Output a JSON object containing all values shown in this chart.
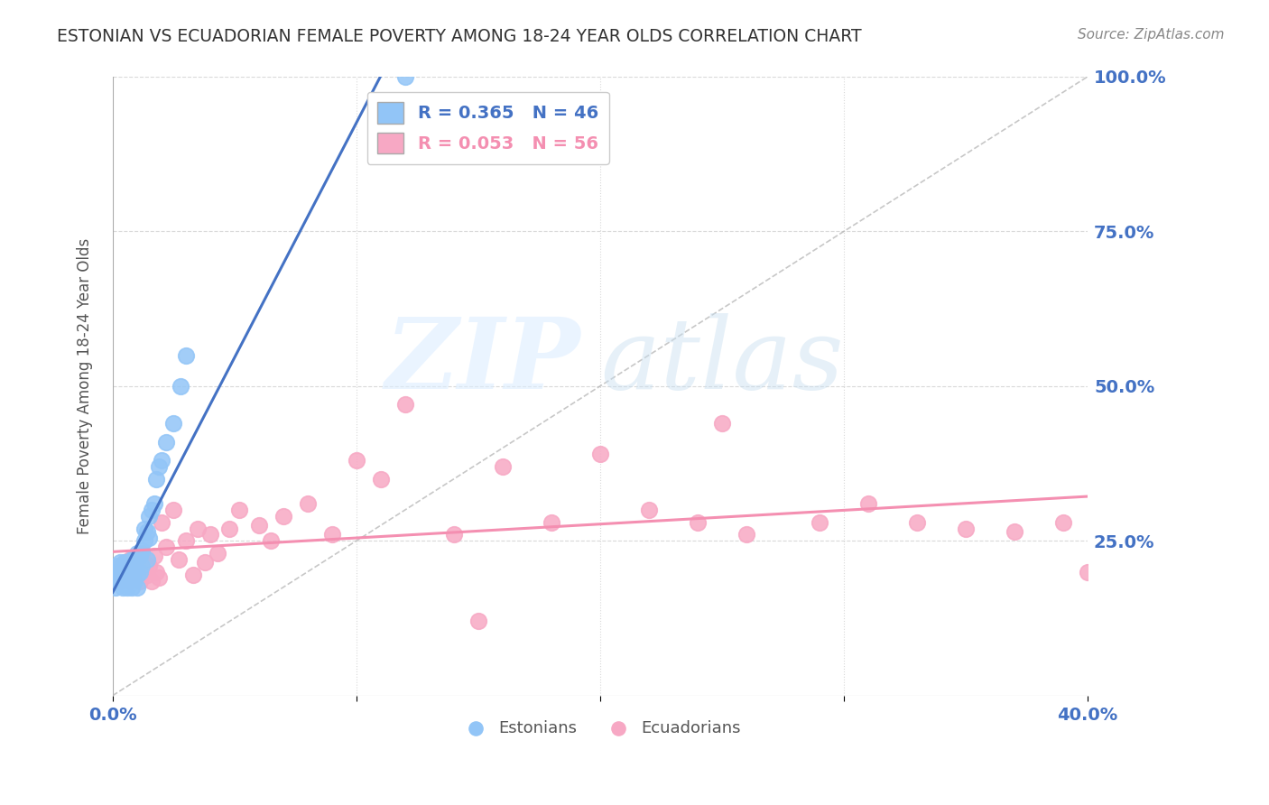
{
  "title": "ESTONIAN VS ECUADORIAN FEMALE POVERTY AMONG 18-24 YEAR OLDS CORRELATION CHART",
  "source": "Source: ZipAtlas.com",
  "ylabel": "Female Poverty Among 18-24 Year Olds",
  "xlim": [
    0.0,
    0.4
  ],
  "ylim": [
    0.0,
    1.0
  ],
  "xticks": [
    0.0,
    0.1,
    0.2,
    0.3,
    0.4
  ],
  "xticklabels": [
    "0.0%",
    "",
    "",
    "",
    "40.0%"
  ],
  "yticks": [
    0.0,
    0.25,
    0.5,
    0.75,
    1.0
  ],
  "yticklabels": [
    "",
    "25.0%",
    "50.0%",
    "75.0%",
    "100.0%"
  ],
  "estonian_R": 0.365,
  "estonian_N": 46,
  "ecuadorian_R": 0.053,
  "ecuadorian_N": 56,
  "estonian_color": "#92c5f7",
  "ecuadorian_color": "#f7a8c4",
  "estonian_line_color": "#4472c4",
  "ecuadorian_line_color": "#f48fb1",
  "refline_color": "#b0b0b0",
  "grid_color": "#d0d0d0",
  "axis_color": "#4472c4",
  "title_color": "#333333",
  "estonian_x": [
    0.0,
    0.001,
    0.001,
    0.002,
    0.002,
    0.003,
    0.003,
    0.004,
    0.004,
    0.004,
    0.005,
    0.005,
    0.005,
    0.006,
    0.006,
    0.006,
    0.007,
    0.007,
    0.008,
    0.008,
    0.008,
    0.009,
    0.009,
    0.01,
    0.01,
    0.01,
    0.011,
    0.011,
    0.012,
    0.012,
    0.013,
    0.013,
    0.014,
    0.014,
    0.015,
    0.015,
    0.016,
    0.017,
    0.018,
    0.019,
    0.02,
    0.022,
    0.025,
    0.028,
    0.03,
    0.12
  ],
  "estonian_y": [
    0.185,
    0.175,
    0.195,
    0.2,
    0.21,
    0.185,
    0.215,
    0.175,
    0.19,
    0.21,
    0.18,
    0.195,
    0.215,
    0.175,
    0.195,
    0.215,
    0.185,
    0.21,
    0.175,
    0.195,
    0.22,
    0.185,
    0.215,
    0.175,
    0.195,
    0.23,
    0.2,
    0.225,
    0.21,
    0.235,
    0.25,
    0.27,
    0.22,
    0.265,
    0.255,
    0.29,
    0.3,
    0.31,
    0.35,
    0.37,
    0.38,
    0.41,
    0.44,
    0.5,
    0.55,
    1.0
  ],
  "ecuadorian_x": [
    0.002,
    0.003,
    0.004,
    0.005,
    0.005,
    0.006,
    0.007,
    0.007,
    0.008,
    0.009,
    0.01,
    0.011,
    0.012,
    0.013,
    0.014,
    0.015,
    0.016,
    0.017,
    0.018,
    0.019,
    0.02,
    0.022,
    0.025,
    0.027,
    0.03,
    0.033,
    0.035,
    0.038,
    0.04,
    0.043,
    0.048,
    0.052,
    0.06,
    0.065,
    0.07,
    0.08,
    0.09,
    0.1,
    0.11,
    0.12,
    0.14,
    0.16,
    0.18,
    0.2,
    0.22,
    0.24,
    0.26,
    0.29,
    0.31,
    0.33,
    0.35,
    0.37,
    0.39,
    0.4,
    0.25,
    0.15
  ],
  "ecuadorian_y": [
    0.205,
    0.185,
    0.21,
    0.195,
    0.215,
    0.2,
    0.185,
    0.22,
    0.195,
    0.205,
    0.215,
    0.185,
    0.23,
    0.2,
    0.195,
    0.21,
    0.185,
    0.225,
    0.2,
    0.19,
    0.28,
    0.24,
    0.3,
    0.22,
    0.25,
    0.195,
    0.27,
    0.215,
    0.26,
    0.23,
    0.27,
    0.3,
    0.275,
    0.25,
    0.29,
    0.31,
    0.26,
    0.38,
    0.35,
    0.47,
    0.26,
    0.37,
    0.28,
    0.39,
    0.3,
    0.28,
    0.26,
    0.28,
    0.31,
    0.28,
    0.27,
    0.265,
    0.28,
    0.2,
    0.44,
    0.12
  ]
}
